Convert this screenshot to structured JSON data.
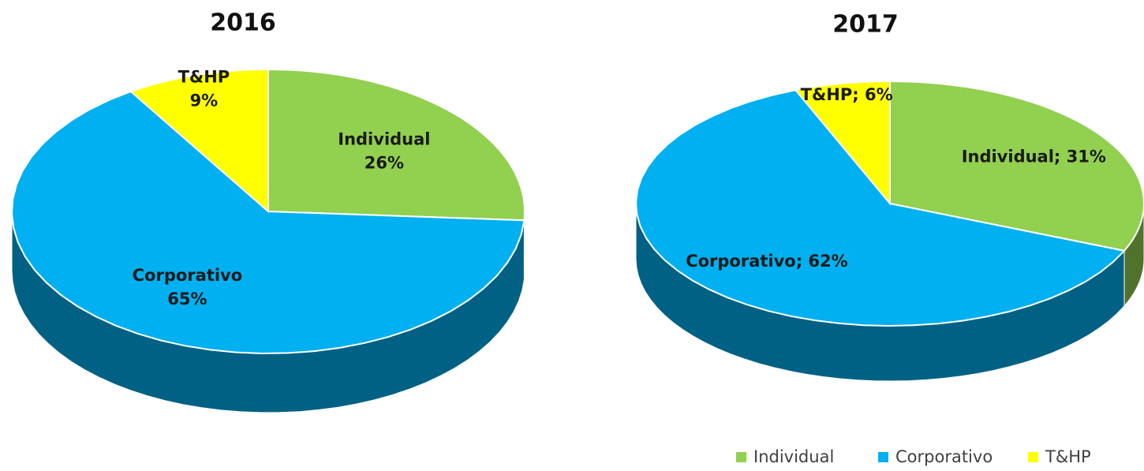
{
  "chart_data": [
    {
      "type": "pie3d",
      "title": "2016",
      "categories": [
        "Individual",
        "Corporativo",
        "T&HP"
      ],
      "values": [
        26,
        65,
        9
      ],
      "value_labels": [
        "26%",
        "65%",
        "9%"
      ],
      "colors": [
        "#92d050",
        "#00b0f0",
        "#ffff00"
      ]
    },
    {
      "type": "pie3d",
      "title": "2017",
      "categories": [
        "Individual",
        "Corporativo",
        "T&HP"
      ],
      "values": [
        31,
        62,
        6
      ],
      "value_labels": [
        "Individual; 31%",
        "Corporativo; 62%",
        "T&HP; 6%"
      ],
      "colors": [
        "#92d050",
        "#00b0f0",
        "#ffff00"
      ],
      "legend": "bottom-right"
    }
  ]
}
